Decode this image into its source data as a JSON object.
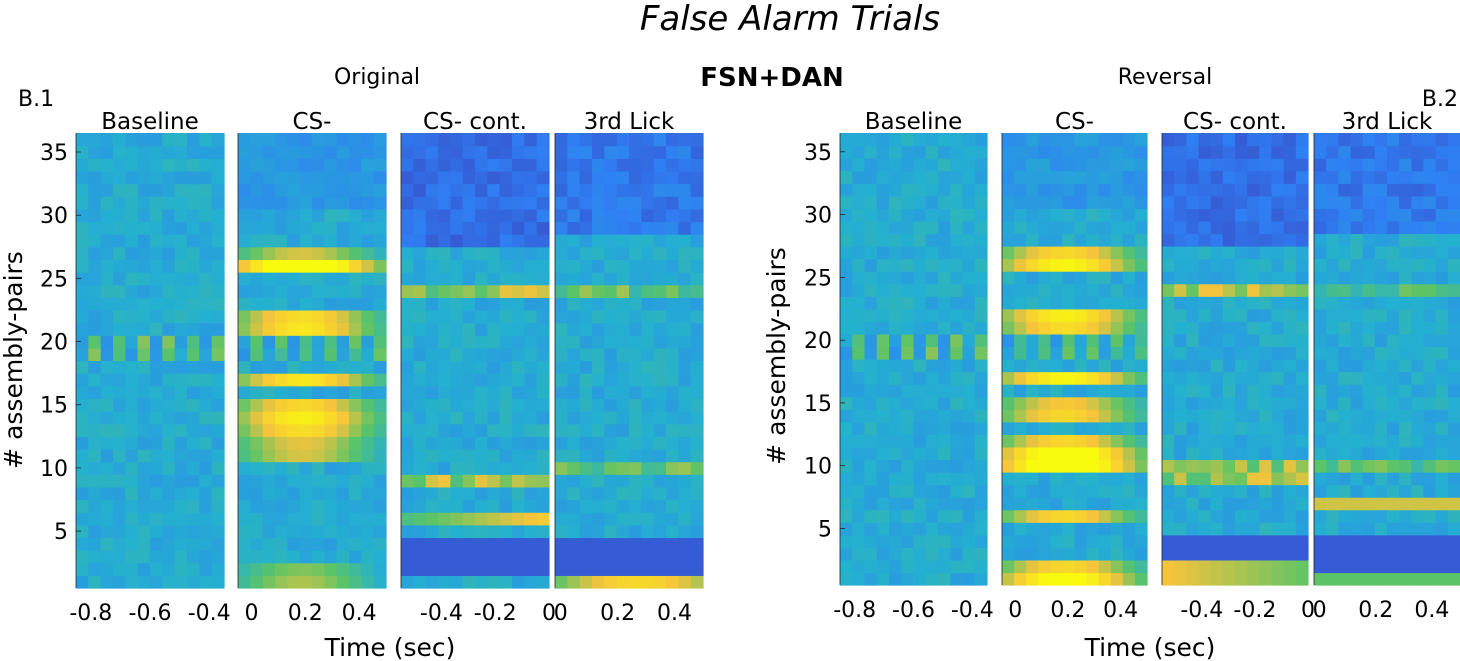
{
  "title": "False Alarm Trials",
  "center_label": "FSN+DAN",
  "chart_data": [
    {
      "type": "heatmap",
      "panel_label": "B.1",
      "title": "Original",
      "ylabel": "# assembly-pairs",
      "xlabel": "Time (sec)",
      "ylim": [
        1,
        36
      ],
      "yticks": [
        "5",
        "10",
        "15",
        "20",
        "25",
        "30",
        "35"
      ],
      "rows": 36,
      "colorscale": [
        "#3e26a8",
        "#2f80f3",
        "#24b0d0",
        "#5ac467",
        "#f6c43b",
        "#f9fb0e"
      ],
      "segments": [
        {
          "name": "Baseline",
          "xticks": [
            "-0.8",
            "-0.6",
            "-0.4"
          ],
          "xlim": [
            -0.85,
            -0.35
          ]
        },
        {
          "name": "CS-",
          "xticks": [
            "0",
            "0.2",
            "0.4"
          ],
          "xlim": [
            -0.05,
            0.5
          ]
        },
        {
          "name": "CS- cont.",
          "xticks": [
            "-0.4",
            "-0.2",
            "0"
          ],
          "xlim": [
            -0.55,
            0.0
          ]
        },
        {
          "name": "3rd Lick",
          "xticks": [
            "0",
            "0.2",
            "0.4"
          ],
          "xlim": [
            -0.02,
            0.5
          ]
        }
      ]
    },
    {
      "type": "heatmap",
      "panel_label": "B.2",
      "title": "Reversal",
      "ylabel": "# assembly-pairs",
      "xlabel": "Time (sec)",
      "ylim": [
        1,
        36
      ],
      "yticks": [
        "5",
        "10",
        "15",
        "20",
        "25",
        "30",
        "35"
      ],
      "rows": 36,
      "colorscale": [
        "#3e26a8",
        "#2f80f3",
        "#24b0d0",
        "#5ac467",
        "#f6c43b",
        "#f9fb0e"
      ],
      "segments": [
        {
          "name": "Baseline",
          "xticks": [
            "-0.8",
            "-0.6",
            "-0.4"
          ],
          "xlim": [
            -0.85,
            -0.35
          ]
        },
        {
          "name": "CS-",
          "xticks": [
            "0",
            "0.2",
            "0.4"
          ],
          "xlim": [
            -0.05,
            0.5
          ]
        },
        {
          "name": "CS- cont.",
          "xticks": [
            "-0.4",
            "-0.2",
            "0"
          ],
          "xlim": [
            -0.55,
            0.0
          ]
        },
        {
          "name": "3rd Lick",
          "xticks": [
            "0",
            "0.2",
            "0.4"
          ],
          "xlim": [
            -0.02,
            0.5
          ]
        }
      ]
    }
  ]
}
